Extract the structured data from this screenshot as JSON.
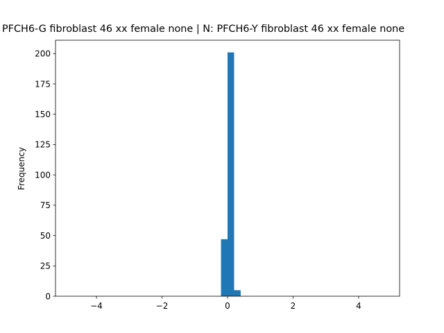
{
  "chart_data": {
    "type": "bar",
    "title": "PFCH6-G fibroblast 46 xx female none | N: PFCH6-Y fibroblast 46 xx female none",
    "xlabel": "",
    "ylabel": "Frequency",
    "xlim": [
      -5.25,
      5.25
    ],
    "ylim": [
      0,
      211
    ],
    "xticks": [
      -4,
      -2,
      0,
      2,
      4
    ],
    "xtick_labels": [
      "−4",
      "−2",
      "0",
      "2",
      "4"
    ],
    "yticks": [
      0,
      25,
      50,
      75,
      100,
      125,
      150,
      175,
      200
    ],
    "ytick_labels": [
      "0",
      "25",
      "50",
      "75",
      "100",
      "125",
      "150",
      "175",
      "200"
    ],
    "bins": [
      {
        "x0": -0.2,
        "x1": 0.0,
        "value": 47
      },
      {
        "x0": 0.0,
        "x1": 0.2,
        "value": 201
      },
      {
        "x0": 0.2,
        "x1": 0.4,
        "value": 5
      }
    ],
    "bar_color": "#1f77b4",
    "grid": false,
    "legend": "none"
  }
}
